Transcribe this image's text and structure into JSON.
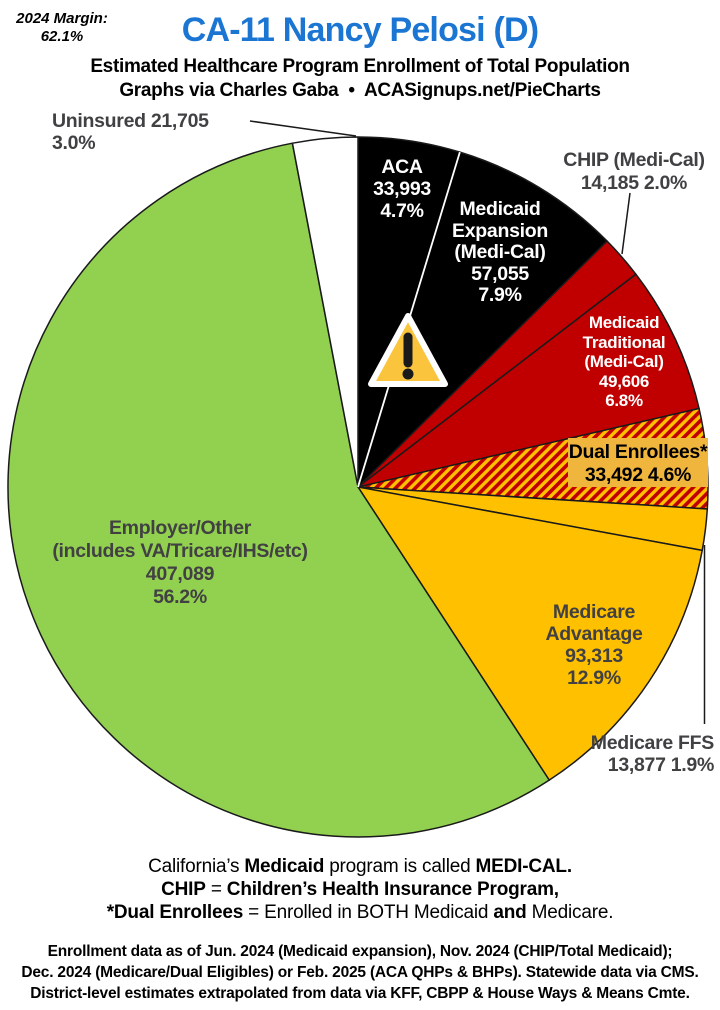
{
  "header": {
    "margin_label": "2024 Margin:",
    "margin_value": "62.1%",
    "title": "CA-11 Nancy Pelosi (D)",
    "subtitle": "Estimated Healthcare Program Enrollment of Total Population",
    "credit": "Graphs via Charles Gaba  •  ACASignups.net/PieCharts"
  },
  "chart_data": {
    "type": "pie",
    "title": "CA-11 Nancy Pelosi (D) — Estimated Healthcare Program Enrollment of Total Population",
    "start_angle": "12 o'clock, clockwise",
    "total_pct": 100.0,
    "slices": [
      {
        "id": "aca",
        "name": "ACA",
        "value": 33993,
        "pct": 4.7,
        "color": "#000000",
        "label_lines": [
          "ACA",
          "33,993",
          "4.7%"
        ]
      },
      {
        "id": "medicaid-expansion",
        "name": "Medicaid Expansion (Medi-Cal)",
        "value": 57055,
        "pct": 7.9,
        "color": "#000000",
        "label_lines": [
          "Medicaid",
          "Expansion",
          "(Medi-Cal)",
          "57,055",
          "7.9%"
        ]
      },
      {
        "id": "chip",
        "name": "CHIP (Medi-Cal)",
        "value": 14185,
        "pct": 2.0,
        "color": "#C00000",
        "label_lines": [
          "CHIP (Medi-Cal)",
          "14,185 2.0%"
        ]
      },
      {
        "id": "medicaid-traditional",
        "name": "Medicaid Traditional (Medi-Cal)",
        "value": 49606,
        "pct": 6.8,
        "color": "#C00000",
        "label_lines": [
          "Medicaid",
          "Traditional",
          "(Medi-Cal)",
          "49,606",
          "6.8%"
        ]
      },
      {
        "id": "dual-enrollees",
        "name": "Dual Enrollees*",
        "value": 33492,
        "pct": 4.6,
        "color": "hatch",
        "label_lines": [
          "Dual Enrollees*",
          "33,492 4.6%"
        ]
      },
      {
        "id": "medicare-ffs",
        "name": "Medicare FFS",
        "value": 13877,
        "pct": 1.9,
        "color": "#FFC000",
        "label_lines": [
          "Medicare FFS",
          "13,877 1.9%"
        ]
      },
      {
        "id": "medicare-advantage",
        "name": "Medicare Advantage",
        "value": 93313,
        "pct": 12.9,
        "color": "#FFC000",
        "label_lines": [
          "Medicare",
          "Advantage",
          "93,313",
          "12.9%"
        ]
      },
      {
        "id": "employer-other",
        "name": "Employer/Other (includes VA/Tricare/IHS/etc)",
        "value": 407089,
        "pct": 56.2,
        "color": "#92D050",
        "label_lines": [
          "Employer/Other",
          "(includes VA/Tricare/IHS/etc)",
          "407,089",
          "56.2%"
        ]
      },
      {
        "id": "uninsured",
        "name": "Uninsured",
        "value": 21705,
        "pct": 3.0,
        "color": "#FFFFFF",
        "label_lines": [
          "Uninsured 21,705 3.0%"
        ]
      }
    ],
    "legend_position": "labels on/beside slices",
    "grid": false
  },
  "icons": {
    "warning": "exclamation-triangle"
  },
  "colors": {
    "title_blue": "#1B75D2",
    "slice_black": "#000000",
    "slice_red": "#C00000",
    "slice_gold": "#FFC000",
    "slice_green": "#92D050",
    "slice_white": "#FFFFFF",
    "hatch_red": "#C00000",
    "hatch_gold": "#FFC000",
    "dual_label_box": "#F0B53C",
    "outside_label_gray": "#414042",
    "warning_fill": "#FBC43D"
  },
  "notes": {
    "line1": {
      "runs": [
        "California’s ",
        "Medicaid",
        " program is called ",
        "MEDI-CAL."
      ]
    },
    "line2": {
      "runs": [
        "CHIP",
        " = ",
        "Children’s Health Insurance Program,"
      ]
    },
    "line3": {
      "runs": [
        "*Dual Enrollees",
        " = Enrolled in BOTH Medicaid ",
        "and",
        " Medicare."
      ]
    }
  },
  "footer": {
    "lines": [
      "Enrollment data as of Jun. 2024 (Medicaid expansion), Nov. 2024 (CHIP/Total Medicaid);",
      "Dec. 2024 (Medicare/Dual Eligibles) or Feb. 2025 (ACA QHPs & BHPs). Statewide data via CMS.",
      "District-level estimates extrapolated from data via KFF, CBPP & House Ways & Means Cmte."
    ]
  }
}
